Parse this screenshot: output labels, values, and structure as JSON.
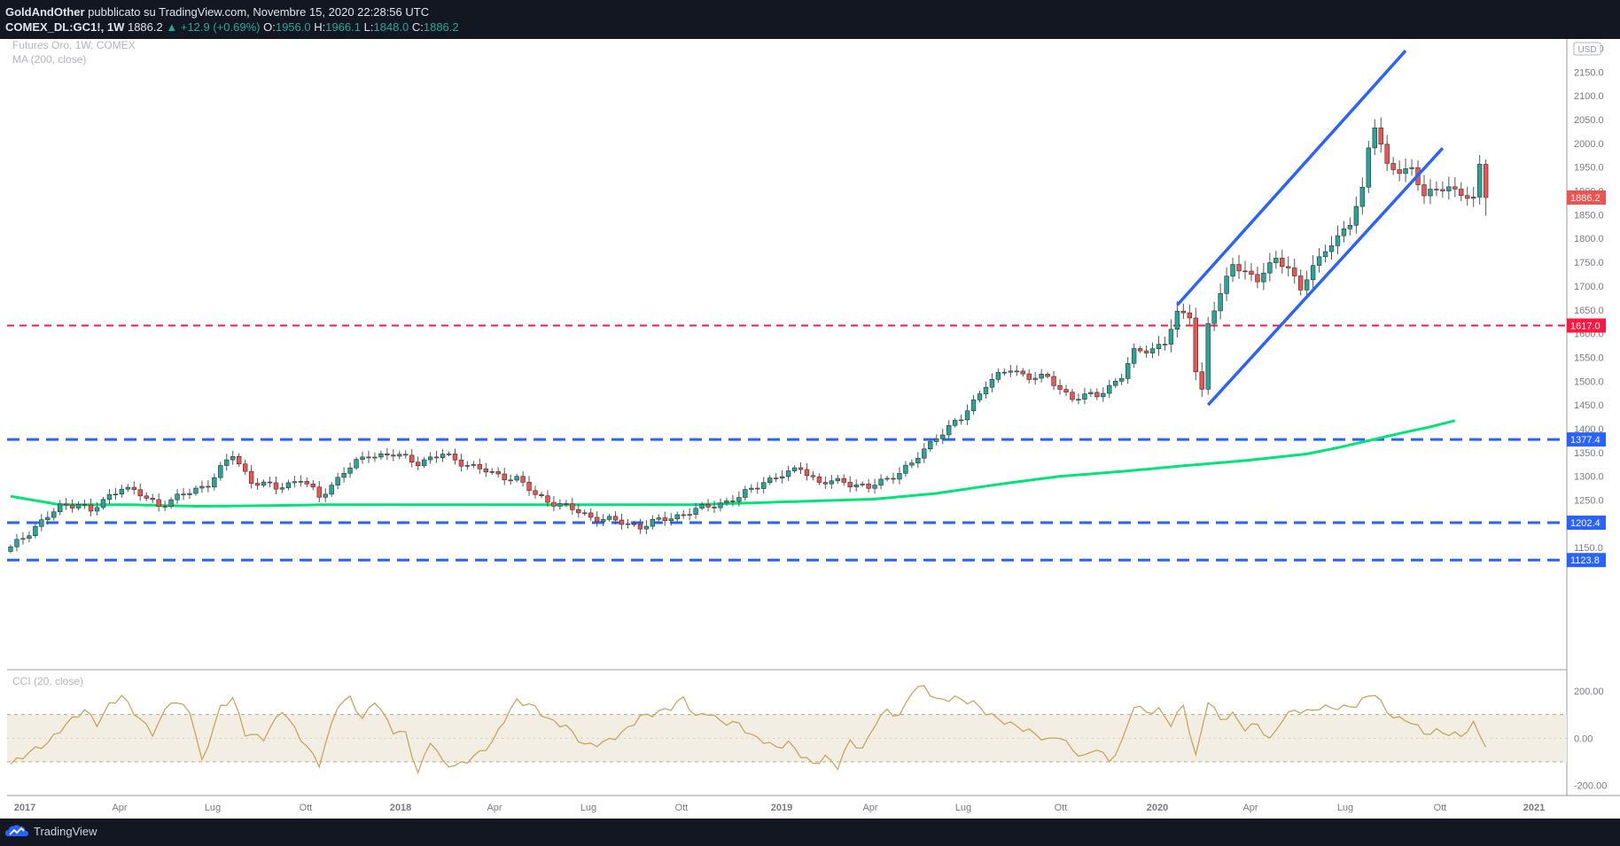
{
  "header": {
    "author": "GoldAndOther",
    "published": "pubblicato su TradingView.com, Novembre 15, 2020 22:28:56 UTC",
    "symbol": "COMEX_DL:GC1!, 1W",
    "last": "1886.2",
    "change": "+12.9 (+0.69%)",
    "o_label": "O:",
    "o": "1956.0",
    "h_label": "H:",
    "h": "1966.1",
    "l_label": "L:",
    "l": "1848.0",
    "c_label": "C:",
    "c": "1886.2"
  },
  "legend": {
    "title": "Futures Oro, 1W, COMEX",
    "ma": "MA (200, close)",
    "cci": "CCI (20, close)"
  },
  "currency": "USD",
  "footer": {
    "logo": "TradingView"
  },
  "colors": {
    "background": "#131722",
    "up": "#26a69a",
    "down": "#ef5350",
    "ma": "#00e676",
    "channel": "#2962ff",
    "support": "#2962ff",
    "resistance": "#ff1744",
    "cci": "#c9a55c"
  },
  "chart_data": {
    "type": "candlestick",
    "y_range": [
      1100,
      2250
    ],
    "y_ticks": [
      "1150.0",
      "1200.0",
      "1250.0",
      "1300.0",
      "1350.0",
      "1400.0",
      "1450.0",
      "1500.0",
      "1550.0",
      "1600.0",
      "1650.0",
      "1700.0",
      "1750.0",
      "1800.0",
      "1850.0",
      "1900.0",
      "1950.0",
      "2000.0",
      "2050.0",
      "2100.0",
      "2150.0",
      "2200.0"
    ],
    "x_ticks": [
      "2017",
      "Apr",
      "Lug",
      "Ott",
      "2018",
      "Apr",
      "Lug",
      "Ott",
      "2019",
      "Apr",
      "Lug",
      "Ott",
      "2020",
      "Apr",
      "Lug",
      "Ott",
      "2021"
    ],
    "anchor_close": [
      [
        0,
        1148
      ],
      [
        4,
        1195
      ],
      [
        8,
        1235
      ],
      [
        11,
        1245
      ],
      [
        13,
        1225
      ],
      [
        18,
        1280
      ],
      [
        24,
        1240
      ],
      [
        28,
        1260
      ],
      [
        32,
        1285
      ],
      [
        36,
        1345
      ],
      [
        39,
        1290
      ],
      [
        43,
        1275
      ],
      [
        47,
        1295
      ],
      [
        50,
        1255
      ],
      [
        54,
        1310
      ],
      [
        58,
        1345
      ],
      [
        62,
        1345
      ],
      [
        66,
        1330
      ],
      [
        70,
        1345
      ],
      [
        74,
        1325
      ],
      [
        78,
        1305
      ],
      [
        82,
        1295
      ],
      [
        85,
        1260
      ],
      [
        90,
        1235
      ],
      [
        94,
        1215
      ],
      [
        98,
        1205
      ],
      [
        102,
        1195
      ],
      [
        106,
        1210
      ],
      [
        110,
        1225
      ],
      [
        114,
        1240
      ],
      [
        118,
        1255
      ],
      [
        122,
        1290
      ],
      [
        126,
        1305
      ],
      [
        128,
        1320
      ],
      [
        131,
        1285
      ],
      [
        135,
        1290
      ],
      [
        139,
        1275
      ],
      [
        142,
        1295
      ],
      [
        146,
        1325
      ],
      [
        150,
        1385
      ],
      [
        154,
        1420
      ],
      [
        158,
        1495
      ],
      [
        162,
        1525
      ],
      [
        165,
        1510
      ],
      [
        168,
        1505
      ],
      [
        172,
        1465
      ],
      [
        176,
        1470
      ],
      [
        180,
        1510
      ],
      [
        182,
        1560
      ],
      [
        185,
        1570
      ],
      [
        187,
        1580
      ],
      [
        189,
        1640
      ],
      [
        191,
        1640
      ],
      [
        192,
        1525
      ],
      [
        193,
        1480
      ],
      [
        194,
        1620
      ],
      [
        196,
        1680
      ],
      [
        198,
        1750
      ],
      [
        202,
        1710
      ],
      [
        205,
        1760
      ],
      [
        207,
        1740
      ],
      [
        209,
        1690
      ],
      [
        211,
        1740
      ],
      [
        213,
        1780
      ],
      [
        215,
        1800
      ],
      [
        217,
        1830
      ],
      [
        219,
        1905
      ],
      [
        220,
        1995
      ],
      [
        221,
        2040
      ],
      [
        223,
        1950
      ],
      [
        225,
        1940
      ],
      [
        227,
        1950
      ],
      [
        229,
        1890
      ],
      [
        231,
        1900
      ],
      [
        233,
        1910
      ],
      [
        235,
        1895
      ],
      [
        237,
        1880
      ],
      [
        238,
        1950
      ],
      [
        239,
        1886
      ]
    ],
    "ma200": [
      [
        0,
        1258
      ],
      [
        8,
        1240
      ],
      [
        20,
        1240
      ],
      [
        30,
        1237
      ],
      [
        40,
        1238
      ],
      [
        50,
        1240
      ],
      [
        60,
        1240
      ],
      [
        70,
        1240
      ],
      [
        80,
        1240
      ],
      [
        90,
        1240
      ],
      [
        100,
        1240
      ],
      [
        110,
        1240
      ],
      [
        120,
        1244
      ],
      [
        130,
        1248
      ],
      [
        140,
        1252
      ],
      [
        150,
        1264
      ],
      [
        160,
        1283
      ],
      [
        170,
        1300
      ],
      [
        180,
        1310
      ],
      [
        190,
        1322
      ],
      [
        200,
        1333
      ],
      [
        210,
        1347
      ],
      [
        215,
        1360
      ],
      [
        220,
        1375
      ],
      [
        225,
        1390
      ],
      [
        230,
        1404
      ],
      [
        234,
        1417
      ]
    ],
    "horizontal_levels": [
      {
        "value": 1617.0,
        "label": "1617.0",
        "color": "#ff1744"
      },
      {
        "value": 1377.4,
        "label": "1377.4",
        "color": "#2962ff"
      },
      {
        "value": 1202.4,
        "label": "1202.4",
        "color": "#2962ff"
      },
      {
        "value": 1123.8,
        "label": "1123.8",
        "color": "#2962ff"
      }
    ],
    "last_price": {
      "value": 1886.2,
      "label": "1886.2"
    },
    "channel": {
      "upper": [
        [
          189,
          1660
        ],
        [
          226,
          2195
        ]
      ],
      "lower": [
        [
          194,
          1450
        ],
        [
          232,
          1990
        ]
      ]
    },
    "cci": {
      "y_range": [
        -220,
        260
      ],
      "ticks": [
        "200.00",
        "0.00",
        "-200.00"
      ],
      "bands": [
        100,
        -100
      ],
      "anchors": [
        [
          0,
          -110
        ],
        [
          3,
          -60
        ],
        [
          6,
          -20
        ],
        [
          9,
          60
        ],
        [
          12,
          120
        ],
        [
          14,
          60
        ],
        [
          16,
          140
        ],
        [
          18,
          180
        ],
        [
          20,
          110
        ],
        [
          23,
          20
        ],
        [
          26,
          160
        ],
        [
          29,
          120
        ],
        [
          31,
          -100
        ],
        [
          34,
          130
        ],
        [
          36,
          170
        ],
        [
          38,
          20
        ],
        [
          41,
          0
        ],
        [
          44,
          120
        ],
        [
          47,
          0
        ],
        [
          50,
          -110
        ],
        [
          53,
          140
        ],
        [
          55,
          170
        ],
        [
          57,
          80
        ],
        [
          59,
          160
        ],
        [
          62,
          30
        ],
        [
          64,
          20
        ],
        [
          66,
          -150
        ],
        [
          68,
          -10
        ],
        [
          70,
          -100
        ],
        [
          72,
          -120
        ],
        [
          75,
          -80
        ],
        [
          78,
          -20
        ],
        [
          80,
          80
        ],
        [
          82,
          160
        ],
        [
          85,
          130
        ],
        [
          87,
          80
        ],
        [
          90,
          50
        ],
        [
          93,
          -30
        ],
        [
          96,
          -20
        ],
        [
          99,
          20
        ],
        [
          102,
          90
        ],
        [
          105,
          110
        ],
        [
          107,
          130
        ],
        [
          109,
          170
        ],
        [
          111,
          90
        ],
        [
          113,
          110
        ],
        [
          115,
          70
        ],
        [
          118,
          60
        ],
        [
          120,
          10
        ],
        [
          122,
          -10
        ],
        [
          124,
          -40
        ],
        [
          126,
          -20
        ],
        [
          128,
          -70
        ],
        [
          130,
          -110
        ],
        [
          132,
          -80
        ],
        [
          134,
          -120
        ],
        [
          136,
          -10
        ],
        [
          138,
          -50
        ],
        [
          140,
          60
        ],
        [
          142,
          120
        ],
        [
          144,
          90
        ],
        [
          146,
          200
        ],
        [
          148,
          220
        ],
        [
          150,
          160
        ],
        [
          153,
          170
        ],
        [
          156,
          150
        ],
        [
          158,
          110
        ],
        [
          160,
          80
        ],
        [
          162,
          60
        ],
        [
          165,
          30
        ],
        [
          168,
          -10
        ],
        [
          170,
          10
        ],
        [
          172,
          -50
        ],
        [
          174,
          -80
        ],
        [
          176,
          -40
        ],
        [
          178,
          -100
        ],
        [
          180,
          -20
        ],
        [
          182,
          140
        ],
        [
          184,
          110
        ],
        [
          186,
          120
        ],
        [
          188,
          60
        ],
        [
          190,
          140
        ],
        [
          192,
          -80
        ],
        [
          194,
          160
        ],
        [
          196,
          80
        ],
        [
          198,
          100
        ],
        [
          200,
          40
        ],
        [
          202,
          60
        ],
        [
          204,
          -10
        ],
        [
          206,
          80
        ],
        [
          208,
          120
        ],
        [
          210,
          110
        ],
        [
          212,
          130
        ],
        [
          214,
          130
        ],
        [
          216,
          130
        ],
        [
          218,
          140
        ],
        [
          220,
          180
        ],
        [
          221,
          190
        ],
        [
          223,
          110
        ],
        [
          225,
          80
        ],
        [
          227,
          70
        ],
        [
          229,
          20
        ],
        [
          231,
          30
        ],
        [
          233,
          20
        ],
        [
          235,
          10
        ],
        [
          237,
          60
        ],
        [
          239,
          -30
        ]
      ]
    }
  }
}
